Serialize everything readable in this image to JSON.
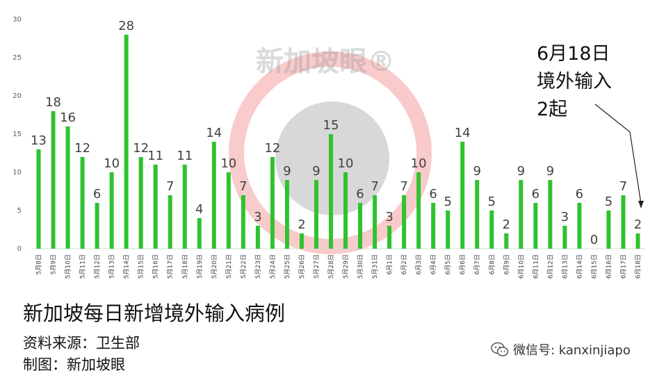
{
  "chart_data": {
    "type": "bar",
    "categories": [
      "5月8日",
      "5月9日",
      "5月10日",
      "5月11日",
      "5月12日",
      "5月13日",
      "5月14日",
      "5月15日",
      "5月16日",
      "5月17日",
      "5月18日",
      "5月19日",
      "5月20日",
      "5月21日",
      "5月22日",
      "5月23日",
      "5月24日",
      "5月25日",
      "5月26日",
      "5月27日",
      "5月28日",
      "5月29日",
      "5月30日",
      "5月31日",
      "6月1日",
      "6月2日",
      "6月3日",
      "6月4日",
      "6月5日",
      "6月6日",
      "6月7日",
      "6月8日",
      "6月9日",
      "6月10日",
      "6月11日",
      "6月12日",
      "6月13日",
      "6月14日",
      "6月15日",
      "6月16日",
      "6月17日",
      "6月18日"
    ],
    "values": [
      13,
      18,
      16,
      12,
      6,
      10,
      28,
      12,
      11,
      7,
      11,
      4,
      14,
      10,
      7,
      3,
      12,
      9,
      2,
      9,
      15,
      10,
      6,
      7,
      3,
      7,
      10,
      6,
      5,
      14,
      9,
      5,
      2,
      9,
      6,
      9,
      3,
      6,
      0,
      5,
      7,
      2
    ],
    "ylim": [
      0,
      30
    ],
    "yticks": [
      0,
      5,
      10,
      15,
      20,
      25,
      30
    ],
    "title": "新加坡每日新增境外输入病例",
    "xlabel": "",
    "ylabel": "",
    "grid": false,
    "bar_color": "#2fc22f"
  },
  "annotation": {
    "text": "6月18日\n境外输入\n2起"
  },
  "source_line": "资料来源：卫生部",
  "maker_line": "制图：新加坡眼",
  "watermark": "新加坡眼®",
  "wechat": {
    "icon": "wechat-icon",
    "text": "微信号: kanxinjiapo"
  }
}
